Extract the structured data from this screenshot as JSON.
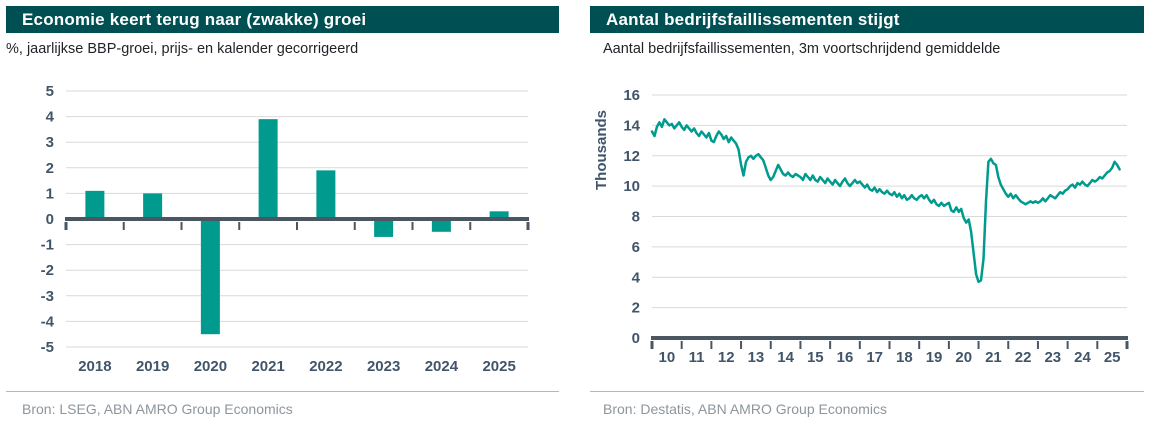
{
  "colors": {
    "header_bar": "#004f53",
    "accent_teal": "#009b8e",
    "axis_line": "#4a5662",
    "gridline": "#d9d9d9",
    "tick_text": "#41556a",
    "source_text": "#8d969d"
  },
  "panels": [
    {
      "title": "Economie keert terug naar (zwakke) groei",
      "subtitle": "%, jaarlijkse BBP-groei, prijs- en kalender gecorrigeerd",
      "source": "Bron: LSEG, ABN AMRO Group Economics"
    },
    {
      "title": "Aantal bedrijfsfaillissementen stijgt",
      "subtitle": "Aantal bedrijfsfaillissementen, 3m voortschrijdend gemiddelde",
      "source": "Bron: Destatis, ABN AMRO Group Economics"
    }
  ],
  "chart_data": [
    {
      "type": "bar",
      "title": "Economie keert terug naar (zwakke) groei",
      "xlabel": "",
      "ylabel": "",
      "categories": [
        "2018",
        "2019",
        "2020",
        "2021",
        "2022",
        "2023",
        "2024",
        "2025"
      ],
      "values": [
        1.1,
        1.0,
        -4.5,
        3.9,
        1.9,
        -0.7,
        -0.5,
        0.3
      ],
      "ylim": [
        -5,
        5
      ],
      "ytick_step": 1,
      "grid": true,
      "color": "#009b8e"
    },
    {
      "type": "line",
      "title": "Aantal bedrijfsfaillissementen stijgt",
      "xlabel": "",
      "ylabel": "Thousands",
      "ylim": [
        0,
        16
      ],
      "ytick_step": 2,
      "xlim": [
        2010,
        2026
      ],
      "xtick_labels": [
        "10",
        "11",
        "12",
        "13",
        "14",
        "15",
        "16",
        "17",
        "18",
        "19",
        "20",
        "21",
        "22",
        "23",
        "24",
        "25"
      ],
      "grid": true,
      "color": "#009b8e",
      "x_start": 2010.0,
      "x_step": 0.08333,
      "values": [
        13.6,
        13.3,
        13.9,
        14.2,
        13.9,
        14.4,
        14.2,
        14.0,
        14.1,
        13.8,
        14.0,
        14.2,
        13.9,
        13.7,
        14.0,
        13.8,
        13.6,
        13.8,
        13.5,
        13.3,
        13.6,
        13.4,
        13.2,
        13.5,
        13.0,
        12.9,
        13.3,
        13.6,
        13.4,
        13.1,
        13.3,
        12.9,
        13.2,
        13.0,
        12.8,
        12.4,
        11.4,
        10.7,
        11.6,
        11.9,
        12.0,
        11.8,
        12.0,
        12.1,
        11.9,
        11.7,
        11.2,
        10.7,
        10.4,
        10.6,
        11.0,
        11.4,
        11.1,
        10.8,
        10.7,
        10.9,
        10.7,
        10.6,
        10.8,
        10.7,
        10.6,
        10.4,
        10.8,
        10.6,
        10.4,
        10.7,
        10.4,
        10.3,
        10.6,
        10.4,
        10.2,
        10.5,
        10.3,
        10.1,
        10.4,
        10.2,
        10.0,
        10.3,
        10.5,
        10.2,
        10.0,
        10.2,
        10.4,
        10.2,
        10.3,
        10.1,
        9.9,
        10.1,
        9.8,
        9.7,
        9.9,
        9.6,
        9.8,
        9.6,
        9.5,
        9.7,
        9.5,
        9.4,
        9.6,
        9.3,
        9.5,
        9.2,
        9.4,
        9.1,
        9.2,
        9.4,
        9.2,
        9.1,
        9.3,
        9.4,
        9.2,
        9.4,
        9.1,
        8.9,
        9.1,
        8.8,
        8.7,
        8.9,
        8.7,
        8.8,
        8.9,
        8.4,
        8.3,
        8.6,
        8.3,
        8.5,
        7.9,
        7.6,
        7.8,
        7.0,
        5.6,
        4.2,
        3.7,
        3.8,
        5.2,
        9.0,
        11.6,
        11.8,
        11.5,
        11.4,
        10.6,
        10.1,
        9.8,
        9.5,
        9.3,
        9.5,
        9.2,
        9.4,
        9.2,
        9.0,
        8.9,
        8.8,
        8.9,
        9.0,
        8.9,
        9.0,
        8.9,
        9.0,
        9.2,
        9.0,
        9.2,
        9.4,
        9.3,
        9.2,
        9.4,
        9.6,
        9.5,
        9.7,
        9.8,
        10.0,
        10.1,
        9.9,
        10.2,
        10.1,
        10.3,
        10.1,
        10.0,
        10.2,
        10.4,
        10.3,
        10.4,
        10.6,
        10.5,
        10.7,
        10.9,
        11.0,
        11.2,
        11.6,
        11.4,
        11.1
      ]
    }
  ]
}
